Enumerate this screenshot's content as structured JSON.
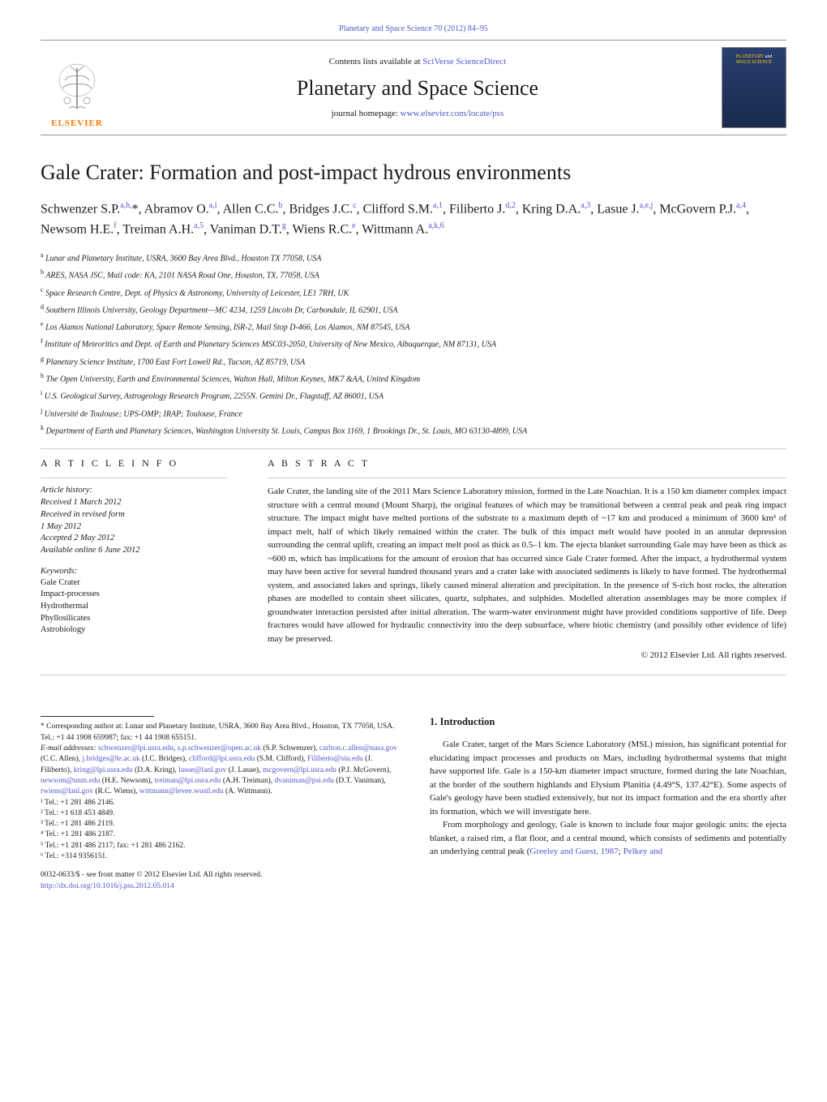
{
  "header": {
    "citation": "Planetary and Space Science 70 (2012) 84–95",
    "citation_link": "#"
  },
  "banner": {
    "elsevier_label": "ELSEVIER",
    "contents_prefix": "Contents lists available at ",
    "contents_link_text": "SciVerse ScienceDirect",
    "journal_name": "Planetary and Space Science",
    "homepage_prefix": "journal homepage: ",
    "homepage_link_text": "www.elsevier.com/locate/pss",
    "cover_text_line1": "PLANETARY",
    "cover_text_and": "and",
    "cover_text_line2": "SPACE SCIENCE"
  },
  "title": "Gale Crater: Formation and post-impact hydrous environments",
  "authors_html": "Schwenzer S.P.<sup>a,h,</sup>*, Abramov O.<sup>a,i</sup>, Allen C.C.<sup>b</sup>, Bridges J.C.<sup>c</sup>, Clifford S.M.<sup>a,1</sup>, Filiberto J.<sup>d,2</sup>, Kring D.A.<sup>a,3</sup>, Lasue J.<sup>a,e,j</sup>, McGovern P.J.<sup>a,4</sup>, Newsom H.E.<sup>f</sup>, Treiman A.H.<sup>a,5</sup>, Vaniman D.T.<sup>g</sup>, Wiens R.C.<sup>e</sup>, Wittmann A.<sup>a,k,6</sup>",
  "affiliations": [
    {
      "sup": "a",
      "text": "Lunar and Planetary Institute, USRA, 3600 Bay Area Blvd., Houston TX 77058, USA"
    },
    {
      "sup": "b",
      "text": "ARES, NASA JSC, Mail code: KA, 2101 NASA Road One, Houston, TX, 77058, USA"
    },
    {
      "sup": "c",
      "text": "Space Research Centre, Dept. of Physics & Astronomy, University of Leicester, LE1 7RH, UK"
    },
    {
      "sup": "d",
      "text": "Southern Illinois University, Geology Department—MC 4234, 1259 Lincoln Dr, Carbondale, IL 62901, USA"
    },
    {
      "sup": "e",
      "text": "Los Alamos National Laboratory, Space Remote Sensing, ISR-2, Mail Stop D-466, Los Alamos, NM 87545, USA"
    },
    {
      "sup": "f",
      "text": "Institute of Meteoritics and Dept. of Earth and Planetary Sciences MSC03-2050, University of New Mexico, Albuquerque, NM 87131, USA"
    },
    {
      "sup": "g",
      "text": "Planetary Science Institute, 1700 East Fort Lowell Rd., Tucson, AZ 85719, USA"
    },
    {
      "sup": "h",
      "text": "The Open University, Earth and Environmental Sciences, Walton Hall, Milton Keynes, MK7 &AA, United Kingdom"
    },
    {
      "sup": "i",
      "text": "U.S. Geological Survey, Astrogeology Research Program, 2255N. Gemini Dr., Flagstaff, AZ 86001, USA"
    },
    {
      "sup": "j",
      "text": "Université de Toulouse; UPS-OMP; IRAP; Toulouse, France"
    },
    {
      "sup": "k",
      "text": "Department of Earth and Planetary Sciences, Washington University St. Louis, Campus Box 1169, 1 Brookings Dr., St. Louis, MO 63130-4899, USA"
    }
  ],
  "article_info": {
    "head": "A R T I C L E   I N F O",
    "history_label": "Article history:",
    "history": [
      "Received 1 March 2012",
      "Received in revised form",
      "1 May 2012",
      "Accepted 2 May 2012",
      "Available online 6 June 2012"
    ],
    "keywords_label": "Keywords:",
    "keywords": [
      "Gale Crater",
      "Impact-processes",
      "Hydrothermal",
      "Phyllosilicates",
      "Astrobiology"
    ]
  },
  "abstract": {
    "head": "A B S T R A C T",
    "text": "Gale Crater, the landing site of the 2011 Mars Science Laboratory mission, formed in the Late Noachian. It is a 150 km diameter complex impact structure with a central mound (Mount Sharp), the original features of which may be transitional between a central peak and peak ring impact structure. The impact might have melted portions of the substrate to a maximum depth of ~17 km and produced a minimum of 3600 km³ of impact melt, half of which likely remained within the crater. The bulk of this impact melt would have pooled in an annular depression surrounding the central uplift, creating an impact melt pool as thick as 0.5–1 km. The ejecta blanket surrounding Gale may have been as thick as ~600 m, which has implications for the amount of erosion that has occurred since Gale Crater formed. After the impact, a hydrothermal system may have been active for several hundred thousand years and a crater lake with associated sediments is likely to have formed. The hydrothermal system, and associated lakes and springs, likely caused mineral alteration and precipitation. In the presence of S-rich host rocks, the alteration phases are modelled to contain sheet silicates, quartz, sulphates, and sulphides. Modelled alteration assemblages may be more complex if groundwater interaction persisted after initial alteration. The warm-water environment might have provided conditions supportive of life. Deep fractures would have allowed for hydraulic connectivity into the deep subsurface, where biotic chemistry (and possibly other evidence of life) may be preserved.",
    "copyright": "© 2012 Elsevier Ltd. All rights reserved."
  },
  "footnotes": {
    "corresponding": "* Corresponding author at: Lunar and Planetary Institute, USRA, 3600 Bay Area Blvd., Houston, TX 77058, USA. Tel.: +1 44 1908 659987; fax: +1 44 1908 655151.",
    "email_label": "E-mail addresses:",
    "emails": " schwenzer@lpi.usra.edu, s.p.schwenzer@open.ac.uk (S.P. Schwenzer), carlton.c.allen@nasa.gov (C.C. Allen), j.bridges@le.ac.uk (J.C. Bridges), clifford@lpi.usra.edu (S.M. Clifford), Filiberto@siu.edu (J. Filiberto), kring@lpi.usra.edu (D.A. Kring), lasue@lanl.gov (J. Lasue), mcgovern@lpi.usra.edu (P.J. McGovern), newsom@unm.edu (H.E. Newsom), treiman@lpi.usra.edu (A.H. Treiman), dvaniman@psi.edu (D.T. Vaniman), rwiens@lanl.gov (R.C. Wiens), wittmann@levee.wustl.edu (A. Wittmann).",
    "tels": [
      "¹ Tel.: +1 281 486 2146.",
      "² Tel.: +1 618 453 4849.",
      "³ Tel.: +1 281 486 2119.",
      "⁴ Tel.: +1 281 486 2187.",
      "⁵ Tel.: +1 281 486 2117; fax: +1 281 486 2162.",
      "⁶ Tel.: +314 9356151."
    ],
    "issn": "0032-0633/$ - see front matter © 2012 Elsevier Ltd. All rights reserved.",
    "doi": "http://dx.doi.org/10.1016/j.pss.2012.05.014"
  },
  "introduction": {
    "head": "1.  Introduction",
    "p1": "Gale Crater, target of the Mars Science Laboratory (MSL) mission, has significant potential for elucidating impact processes and products on Mars, including hydrothermal systems that might have supported life. Gale is a 150-km diameter impact structure, formed during the late Noachian, at the border of the southern highlands and Elysium Planitia (4.49°S, 137.42°E). Some aspects of Gale's geology have been studied extensively, but not its impact formation and the era shortly after its formation, which we will investigate here.",
    "p2_pre": "From morphology and geology, Gale is known to include four major geologic units: the ejecta blanket, a raised rim, a flat floor, and a central mound, which consists of sediments and potentially an underlying central peak (",
    "p2_ref1": "Greeley and Guest, 1987",
    "p2_mid": "; ",
    "p2_ref2": "Pelkey and"
  },
  "colors": {
    "link": "#5555cc",
    "elsevier_orange": "#ff7700",
    "cover_bg_top": "#2a3f6f",
    "cover_bg_bottom": "#1a2a4f",
    "cover_yellow": "#ffcc00",
    "text": "#1a1a1a",
    "background": "#ffffff",
    "rule": "#cccccc"
  }
}
